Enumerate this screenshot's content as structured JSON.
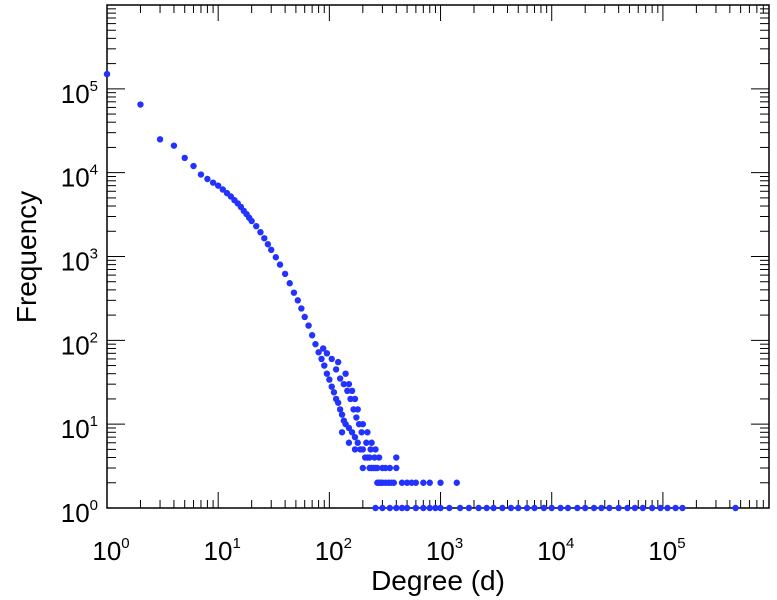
{
  "chart_data": {
    "type": "scatter",
    "title": "",
    "xlabel": "Degree (d)",
    "ylabel": "Frequency",
    "x_scale": "log",
    "y_scale": "log",
    "xlim": [
      1,
      900000
    ],
    "ylim": [
      1,
      1000000
    ],
    "grid": false,
    "x_ticks": [
      {
        "base": "10",
        "exp": "0",
        "value": 1
      },
      {
        "base": "10",
        "exp": "1",
        "value": 10
      },
      {
        "base": "10",
        "exp": "2",
        "value": 100
      },
      {
        "base": "10",
        "exp": "3",
        "value": 1000
      },
      {
        "base": "10",
        "exp": "4",
        "value": 10000
      },
      {
        "base": "10",
        "exp": "5",
        "value": 100000
      }
    ],
    "y_ticks": [
      {
        "base": "10",
        "exp": "0",
        "value": 1
      },
      {
        "base": "10",
        "exp": "1",
        "value": 10
      },
      {
        "base": "10",
        "exp": "2",
        "value": 100
      },
      {
        "base": "10",
        "exp": "3",
        "value": 1000
      },
      {
        "base": "10",
        "exp": "4",
        "value": 10000
      },
      {
        "base": "10",
        "exp": "5",
        "value": 100000
      }
    ],
    "marker_color": "#2233ff",
    "series": [
      {
        "points": [
          [
            1,
            150000
          ],
          [
            2,
            65000
          ],
          [
            3,
            25000
          ],
          [
            4,
            21000
          ],
          [
            5,
            15000
          ],
          [
            6,
            12000
          ],
          [
            7,
            9500
          ],
          [
            8,
            8400
          ],
          [
            9,
            7600
          ],
          [
            10,
            7000
          ],
          [
            11,
            6300
          ],
          [
            12,
            5700
          ],
          [
            13,
            5200
          ],
          [
            14,
            4700
          ],
          [
            15,
            4300
          ],
          [
            16,
            3900
          ],
          [
            17,
            3500
          ],
          [
            18,
            3200
          ],
          [
            19,
            2900
          ],
          [
            20,
            2650
          ],
          [
            22,
            2300
          ],
          [
            24,
            1950
          ],
          [
            26,
            1650
          ],
          [
            28,
            1400
          ],
          [
            30,
            1200
          ],
          [
            33,
            980
          ],
          [
            36,
            800
          ],
          [
            40,
            620
          ],
          [
            44,
            480
          ],
          [
            48,
            370
          ],
          [
            52,
            300
          ],
          [
            56,
            240
          ],
          [
            60,
            190
          ],
          [
            65,
            150
          ],
          [
            70,
            115
          ],
          [
            75,
            90
          ],
          [
            80,
            72
          ],
          [
            85,
            60
          ],
          [
            90,
            50
          ],
          [
            95,
            40
          ],
          [
            100,
            34
          ],
          [
            105,
            28
          ],
          [
            110,
            24
          ],
          [
            115,
            20
          ],
          [
            120,
            18
          ],
          [
            125,
            15
          ],
          [
            130,
            13
          ],
          [
            135,
            11
          ],
          [
            140,
            10
          ],
          [
            150,
            9
          ],
          [
            160,
            8
          ],
          [
            170,
            7
          ],
          [
            180,
            6
          ],
          [
            190,
            5
          ],
          [
            200,
            5
          ],
          [
            210,
            4
          ],
          [
            220,
            4
          ],
          [
            230,
            4
          ],
          [
            240,
            3
          ],
          [
            250,
            3
          ],
          [
            260,
            3
          ],
          [
            270,
            3
          ],
          [
            280,
            2
          ],
          [
            290,
            2
          ],
          [
            300,
            2
          ],
          [
            320,
            2
          ],
          [
            340,
            2
          ],
          [
            360,
            2
          ],
          [
            380,
            2
          ],
          [
            400,
            4
          ],
          [
            450,
            2
          ],
          [
            500,
            2
          ],
          [
            550,
            2
          ],
          [
            600,
            2
          ],
          [
            700,
            2
          ],
          [
            800,
            2
          ],
          [
            1000,
            2
          ],
          [
            1400,
            2
          ],
          [
            115,
            45
          ],
          [
            125,
            35
          ],
          [
            135,
            30
          ],
          [
            145,
            25
          ],
          [
            155,
            20
          ],
          [
            165,
            15
          ],
          [
            175,
            12
          ],
          [
            185,
            10
          ],
          [
            195,
            8
          ],
          [
            215,
            6
          ],
          [
            235,
            5
          ],
          [
            255,
            4
          ],
          [
            105,
            60
          ],
          [
            95,
            70
          ],
          [
            88,
            80
          ],
          [
            120,
            55
          ],
          [
            140,
            40
          ],
          [
            150,
            30
          ],
          [
            160,
            25
          ],
          [
            170,
            20
          ],
          [
            180,
            15
          ],
          [
            200,
            10
          ],
          [
            220,
            8
          ],
          [
            240,
            6
          ],
          [
            260,
            5
          ],
          [
            280,
            4
          ],
          [
            300,
            3
          ],
          [
            320,
            3
          ],
          [
            350,
            3
          ],
          [
            400,
            3
          ],
          [
            130,
            8
          ],
          [
            150,
            6
          ],
          [
            170,
            5
          ],
          [
            200,
            3
          ],
          [
            230,
            3
          ],
          [
            270,
            2
          ],
          [
            260,
            1
          ],
          [
            300,
            1
          ],
          [
            350,
            1
          ],
          [
            400,
            1
          ],
          [
            450,
            1
          ],
          [
            500,
            1
          ],
          [
            600,
            1
          ],
          [
            700,
            1
          ],
          [
            800,
            1
          ],
          [
            900,
            1
          ],
          [
            1000,
            1
          ],
          [
            1200,
            1
          ],
          [
            1500,
            1
          ],
          [
            1800,
            1
          ],
          [
            2200,
            1
          ],
          [
            2600,
            1
          ],
          [
            3000,
            1
          ],
          [
            3600,
            1
          ],
          [
            4300,
            1
          ],
          [
            5000,
            1
          ],
          [
            6000,
            1
          ],
          [
            7000,
            1
          ],
          [
            8500,
            1
          ],
          [
            10000,
            1
          ],
          [
            12000,
            1
          ],
          [
            14000,
            1
          ],
          [
            17000,
            1
          ],
          [
            20000,
            1
          ],
          [
            24000,
            1
          ],
          [
            28000,
            1
          ],
          [
            33000,
            1
          ],
          [
            40000,
            1
          ],
          [
            48000,
            1
          ],
          [
            56000,
            1
          ],
          [
            66000,
            1
          ],
          [
            80000,
            1
          ],
          [
            95000,
            1
          ],
          [
            110000,
            1
          ],
          [
            130000,
            1
          ],
          [
            150000,
            1
          ],
          [
            450000,
            1
          ]
        ]
      }
    ]
  }
}
